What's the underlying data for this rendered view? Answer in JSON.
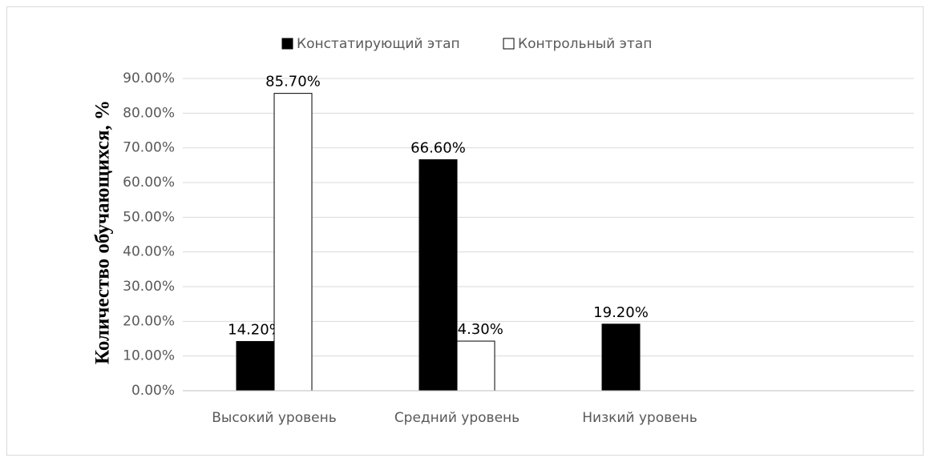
{
  "chart_data": {
    "type": "bar",
    "y_label": "Количество обучающихся, %",
    "categories": [
      "Высокий уровень",
      "Средний уровень",
      "Низкий уровень",
      null
    ],
    "series": [
      {
        "name": "Констатирующий этап",
        "color": "#000000",
        "values": [
          14.2,
          66.6,
          19.2,
          null
        ],
        "value_labels": [
          "14.20%",
          "66.60%",
          "19.20%",
          null
        ]
      },
      {
        "name": "Контрольный этап",
        "color": "#ffffff",
        "values": [
          85.7,
          14.3,
          null,
          null
        ],
        "value_labels": [
          "85.70%",
          "14.30%",
          null,
          null
        ]
      }
    ],
    "ylim": [
      0,
      90
    ],
    "yticks": [
      {
        "value": 0,
        "label": "0.00%"
      },
      {
        "value": 10,
        "label": "10.00%"
      },
      {
        "value": 20,
        "label": "20.00%"
      },
      {
        "value": 30,
        "label": "30.00%"
      },
      {
        "value": 40,
        "label": "40.00%"
      },
      {
        "value": 50,
        "label": "50.00%"
      },
      {
        "value": 60,
        "label": "60.00%"
      },
      {
        "value": 70,
        "label": "70.00%"
      },
      {
        "value": 80,
        "label": "80.00%"
      },
      {
        "value": 90,
        "label": "90.00%"
      }
    ],
    "grid": true,
    "legend": "top"
  }
}
